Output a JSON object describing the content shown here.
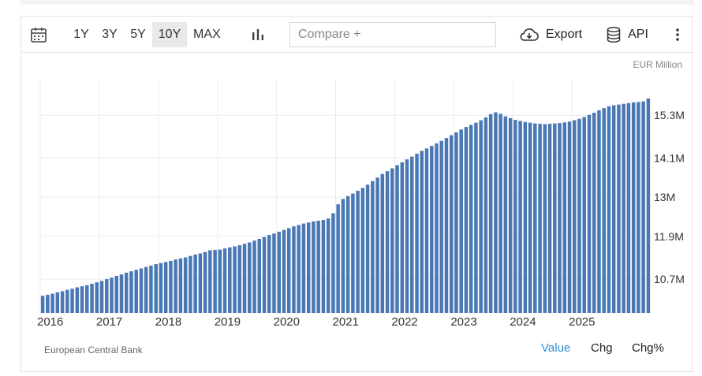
{
  "toolbar": {
    "ranges": [
      {
        "label": "1Y",
        "active": false
      },
      {
        "label": "3Y",
        "active": false
      },
      {
        "label": "5Y",
        "active": false
      },
      {
        "label": "10Y",
        "active": true
      },
      {
        "label": "MAX",
        "active": false
      }
    ],
    "compare_placeholder": "Compare +",
    "export_label": "Export",
    "api_label": "API"
  },
  "footer": {
    "source": "European Central Bank",
    "views": [
      "Value",
      "Chg",
      "Chg%"
    ],
    "active_view": "Value"
  },
  "colors": {
    "bar": "#4a78b5",
    "accent": "#2e8fd8",
    "grid": "#ececec"
  },
  "chart_data": {
    "type": "bar",
    "unit": "EUR Million",
    "x_start": "2016-01",
    "x_end": "2025-10",
    "x_ticks": [
      "2016",
      "2017",
      "2018",
      "2019",
      "2020",
      "2021",
      "2022",
      "2023",
      "2024",
      "2025"
    ],
    "y_ticks": [
      "10.7M",
      "11.9M",
      "13M",
      "14.1M",
      "15.3M"
    ],
    "y_tick_values": [
      10.7,
      11.9,
      13.0,
      14.1,
      15.3
    ],
    "ylim": [
      9.75,
      16.3
    ],
    "grid": true,
    "values": [
      10.23,
      10.26,
      10.29,
      10.33,
      10.36,
      10.4,
      10.43,
      10.47,
      10.5,
      10.53,
      10.57,
      10.61,
      10.65,
      10.7,
      10.74,
      10.79,
      10.83,
      10.88,
      10.92,
      10.96,
      11.0,
      11.04,
      11.08,
      11.12,
      11.15,
      11.18,
      11.21,
      11.25,
      11.28,
      11.31,
      11.35,
      11.39,
      11.42,
      11.46,
      11.51,
      11.52,
      11.53,
      11.56,
      11.59,
      11.62,
      11.65,
      11.69,
      11.73,
      11.78,
      11.83,
      11.88,
      11.94,
      11.98,
      12.03,
      12.08,
      12.13,
      12.18,
      12.22,
      12.26,
      12.29,
      12.32,
      12.34,
      12.36,
      12.4,
      12.55,
      12.8,
      12.95,
      13.03,
      13.1,
      13.18,
      13.26,
      13.35,
      13.45,
      13.55,
      13.65,
      13.73,
      13.81,
      13.9,
      13.98,
      14.06,
      14.14,
      14.22,
      14.3,
      14.37,
      14.44,
      14.51,
      14.58,
      14.66,
      14.74,
      14.82,
      14.9,
      14.97,
      15.03,
      15.09,
      15.16,
      15.24,
      15.33,
      15.38,
      15.34,
      15.27,
      15.22,
      15.17,
      15.14,
      15.11,
      15.09,
      15.07,
      15.06,
      15.05,
      15.06,
      15.07,
      15.08,
      15.1,
      15.12,
      15.16,
      15.2,
      15.25,
      15.31,
      15.37,
      15.44,
      15.5,
      15.55,
      15.58,
      15.6,
      15.62,
      15.64,
      15.66,
      15.67,
      15.69,
      15.77
    ]
  }
}
